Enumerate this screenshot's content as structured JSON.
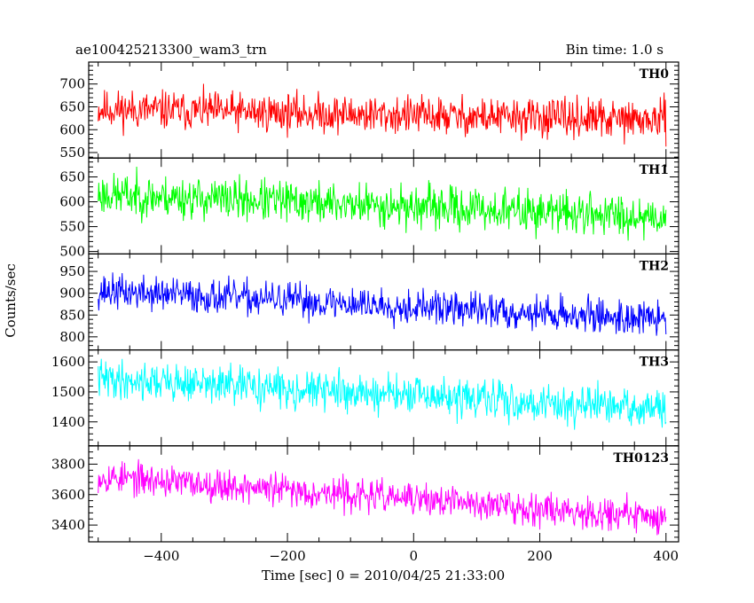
{
  "chart_data": {
    "type": "line",
    "title": "ae100425213300_wam3_trn",
    "subtitle": "Bin time: 1.0 s",
    "xlabel": "Time [sec] 0 = 2010/04/25 21:33:00",
    "ylabel": "Counts/sec",
    "xlim": [
      -515,
      420
    ],
    "xticks": [
      -400,
      -200,
      0,
      200,
      400
    ],
    "x_start": -500,
    "x_end": 400,
    "grid": false,
    "panels": [
      {
        "name": "TH0",
        "color": "#ff0000",
        "ylim": [
          538,
          748
        ],
        "yticks": [
          550,
          600,
          650,
          700
        ],
        "trend": [
          645,
          620
        ],
        "spread": 30,
        "seed": 11
      },
      {
        "name": "TH1",
        "color": "#00ff00",
        "ylim": [
          495,
          688
        ],
        "yticks": [
          500,
          550,
          600,
          650
        ],
        "trend": [
          615,
          570
        ],
        "spread": 30,
        "seed": 23
      },
      {
        "name": "TH2",
        "color": "#0000ff",
        "ylim": [
          770,
          990
        ],
        "yticks": [
          800,
          850,
          900,
          950
        ],
        "trend": [
          905,
          840
        ],
        "spread": 28,
        "seed": 37
      },
      {
        "name": "TH3",
        "color": "#00ffff",
        "ylim": [
          1320,
          1640
        ],
        "yticks": [
          1400,
          1500,
          1600
        ],
        "trend": [
          1545,
          1440
        ],
        "spread": 45,
        "seed": 41
      },
      {
        "name": "TH0123",
        "color": "#ff00ff",
        "ylim": [
          3290,
          3920
        ],
        "yticks": [
          3400,
          3600,
          3800
        ],
        "trend": [
          3720,
          3450
        ],
        "spread": 75,
        "seed": 53
      }
    ]
  }
}
